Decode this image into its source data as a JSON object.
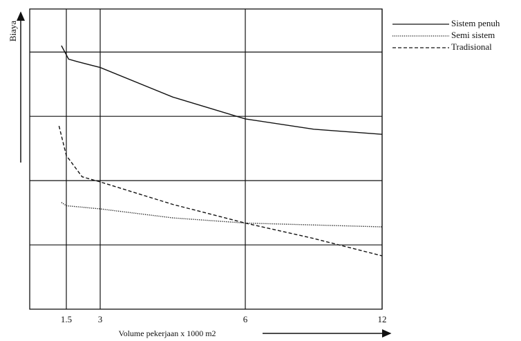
{
  "chart_data": {
    "type": "line",
    "y_label": "Biaya",
    "x_label": "Volume pekerjaan x 1000 m2",
    "xlim": [
      0,
      12
    ],
    "xticks": [
      1.5,
      3,
      6,
      12
    ],
    "ylim": [
      0,
      4.67
    ],
    "grid_lines": [
      1,
      2,
      3,
      4
    ],
    "grid": true,
    "legend": "top-right",
    "series": [
      {
        "name": "Sistem penuh",
        "color": "#111111",
        "style": "solid",
        "x": [
          1.3,
          1.6,
          2,
          3,
          4.5,
          6,
          9,
          12
        ],
        "values": [
          4.1,
          3.89,
          3.85,
          3.76,
          3.3,
          2.96,
          2.8,
          2.72
        ]
      },
      {
        "name": "Semi sistem",
        "color": "#111111",
        "style": "dotted",
        "x": [
          1.3,
          1.5,
          3,
          4.5,
          6,
          12
        ],
        "values": [
          1.66,
          1.61,
          1.56,
          1.42,
          1.34,
          1.28
        ]
      },
      {
        "name": "Tradisional",
        "color": "#111111",
        "style": "dashed",
        "x": [
          1.2,
          1.5,
          2.2,
          3,
          4.5,
          6,
          9,
          12
        ],
        "values": [
          2.85,
          2.39,
          2.06,
          1.98,
          1.63,
          1.34,
          1.1,
          0.83
        ]
      }
    ]
  }
}
